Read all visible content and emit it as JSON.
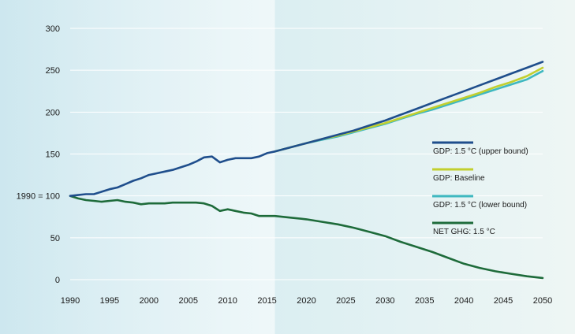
{
  "chart_data": {
    "type": "line",
    "title": "",
    "xlabel": "",
    "ylabel": "",
    "xlim": [
      1990,
      2050
    ],
    "ylim": [
      0,
      300
    ],
    "x_ticks": [
      1990,
      1995,
      2000,
      2005,
      2010,
      2015,
      2020,
      2025,
      2030,
      2035,
      2040,
      2045,
      2050
    ],
    "y_ticks": [
      {
        "value": 0,
        "label": "0"
      },
      {
        "value": 50,
        "label": "50"
      },
      {
        "value": 100,
        "label": "1990 = 100"
      },
      {
        "value": 150,
        "label": "150"
      },
      {
        "value": 200,
        "label": "200"
      },
      {
        "value": 250,
        "label": "250"
      },
      {
        "value": 300,
        "label": "300"
      }
    ],
    "grid": "horizontal",
    "historical_shading_end": 2016,
    "legend_position": "right",
    "series": [
      {
        "name": "GDP: 1.5 °C (upper bound)",
        "color": "#1f4e8c",
        "x": [
          1990,
          1991,
          1992,
          1993,
          1994,
          1995,
          1996,
          1997,
          1998,
          1999,
          2000,
          2001,
          2002,
          2003,
          2004,
          2005,
          2006,
          2007,
          2008,
          2009,
          2010,
          2011,
          2012,
          2013,
          2014,
          2015,
          2016,
          2018,
          2020,
          2022,
          2024,
          2026,
          2028,
          2030,
          2032,
          2034,
          2036,
          2038,
          2040,
          2042,
          2044,
          2046,
          2048,
          2050
        ],
        "values": [
          100,
          101,
          102,
          102,
          105,
          108,
          110,
          114,
          118,
          121,
          125,
          127,
          129,
          131,
          134,
          137,
          141,
          146,
          147,
          140,
          143,
          145,
          145,
          145,
          147,
          151,
          153,
          158,
          163,
          168,
          173,
          178,
          184,
          190,
          197,
          204,
          211,
          218,
          225,
          232,
          239,
          246,
          253,
          260
        ]
      },
      {
        "name": "GDP: Baseline",
        "color": "#c2cf2e",
        "x": [
          2016,
          2018,
          2020,
          2022,
          2024,
          2026,
          2028,
          2030,
          2032,
          2034,
          2036,
          2038,
          2040,
          2042,
          2044,
          2046,
          2048,
          2050
        ],
        "values": [
          153,
          158,
          163,
          168,
          172,
          177,
          182,
          187,
          193,
          199,
          205,
          211,
          217,
          223,
          230,
          236,
          243,
          253
        ]
      },
      {
        "name": "GDP: 1.5 °C (lower bound)",
        "color": "#3fb8c0",
        "x": [
          2016,
          2018,
          2020,
          2022,
          2024,
          2026,
          2028,
          2030,
          2032,
          2034,
          2036,
          2038,
          2040,
          2042,
          2044,
          2046,
          2048,
          2050
        ],
        "values": [
          153,
          158,
          163,
          167,
          171,
          176,
          181,
          186,
          192,
          198,
          203,
          209,
          215,
          221,
          227,
          233,
          239,
          249
        ]
      },
      {
        "name": "NET GHG: 1.5 °C",
        "color": "#1e6b3a",
        "x": [
          1990,
          1991,
          1992,
          1993,
          1994,
          1995,
          1996,
          1997,
          1998,
          1999,
          2000,
          2001,
          2002,
          2003,
          2004,
          2005,
          2006,
          2007,
          2008,
          2009,
          2010,
          2011,
          2012,
          2013,
          2014,
          2015,
          2016,
          2018,
          2020,
          2022,
          2024,
          2026,
          2028,
          2030,
          2032,
          2034,
          2036,
          2038,
          2040,
          2042,
          2044,
          2046,
          2048,
          2050
        ],
        "values": [
          100,
          97,
          95,
          94,
          93,
          94,
          95,
          93,
          92,
          90,
          91,
          91,
          91,
          92,
          92,
          92,
          92,
          91,
          88,
          82,
          84,
          82,
          80,
          79,
          76,
          76,
          76,
          74,
          72,
          69,
          66,
          62,
          57,
          52,
          45,
          39,
          33,
          26,
          19,
          14,
          10,
          7,
          4,
          2
        ]
      }
    ]
  }
}
